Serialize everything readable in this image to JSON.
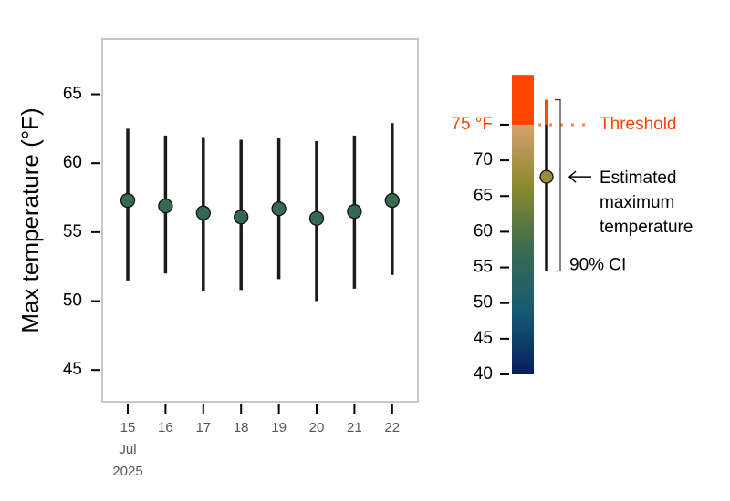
{
  "chart_data": {
    "type": "errorbar",
    "y_label": "Max temperature (°F)",
    "categories": [
      "15",
      "16",
      "17",
      "18",
      "19",
      "20",
      "21",
      "22"
    ],
    "month_label": "Jul",
    "year_label": "2025",
    "values": [
      57.3,
      56.9,
      56.4,
      56.1,
      56.7,
      56.0,
      56.5,
      57.3
    ],
    "lower": [
      51.5,
      52.0,
      50.7,
      50.8,
      51.6,
      50.0,
      50.9,
      51.9
    ],
    "upper": [
      62.5,
      62.0,
      61.9,
      61.7,
      61.8,
      61.6,
      62.0,
      62.9
    ],
    "ylim": [
      42.7,
      69
    ],
    "yticks": [
      45,
      50,
      55,
      60,
      65
    ],
    "colorbar": {
      "lim": [
        40,
        82
      ],
      "ticks": [
        40,
        45,
        50,
        55,
        60,
        65,
        70,
        {
          "value": 75,
          "label": "75 °F"
        }
      ],
      "colors": [
        "#061e5e",
        "#165a74",
        "#3a6b50",
        "#8a8a2c",
        "#d4a070"
      ],
      "threshold": 75,
      "threshold_color": "#ff4500",
      "threshold_label": "Threshold",
      "example": {
        "value": 67.7,
        "lower": 54.5,
        "upper": 78.5
      },
      "point_label": [
        "Estimated",
        "maximum",
        "temperature"
      ],
      "ci_label": "90% CI"
    }
  }
}
